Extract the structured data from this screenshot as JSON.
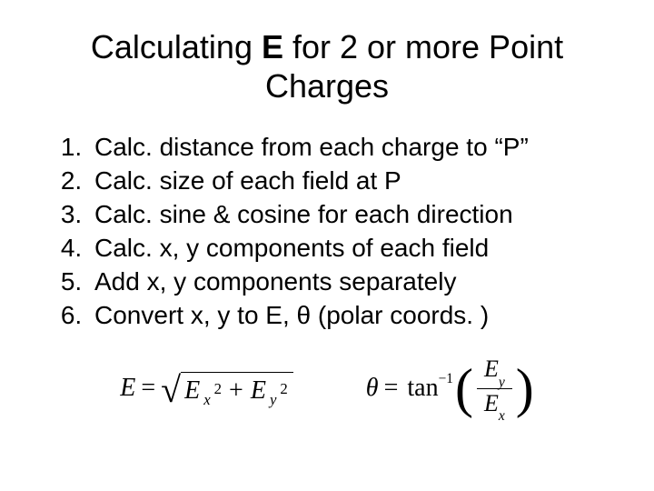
{
  "title_pre": "Calculating ",
  "title_E": "E",
  "title_post": " for 2 or more Point Charges",
  "steps": [
    "Calc. distance from each charge to “P”",
    "Calc. size of each field at P",
    "Calc. sine & cosine for each direction",
    "Calc. x, y components of each field",
    "Add x, y components separately",
    "Convert x, y to E, θ (polar coords. )"
  ],
  "formula1": {
    "lhs": "E",
    "eq": "=",
    "term1_base": "E",
    "term1_sub": "x",
    "term1_sup": "2",
    "plus": "+",
    "term2_base": "E",
    "term2_sub": "y",
    "term2_sup": "2"
  },
  "formula2": {
    "lhs": "θ",
    "eq": "=",
    "fn": "tan",
    "inv": "−1",
    "num_base": "E",
    "num_sub": "y",
    "den_base": "E",
    "den_sub": "x"
  },
  "colors": {
    "text": "#000000",
    "background": "#ffffff"
  },
  "fontsizes": {
    "title": 36,
    "body": 28,
    "formula": 28
  }
}
